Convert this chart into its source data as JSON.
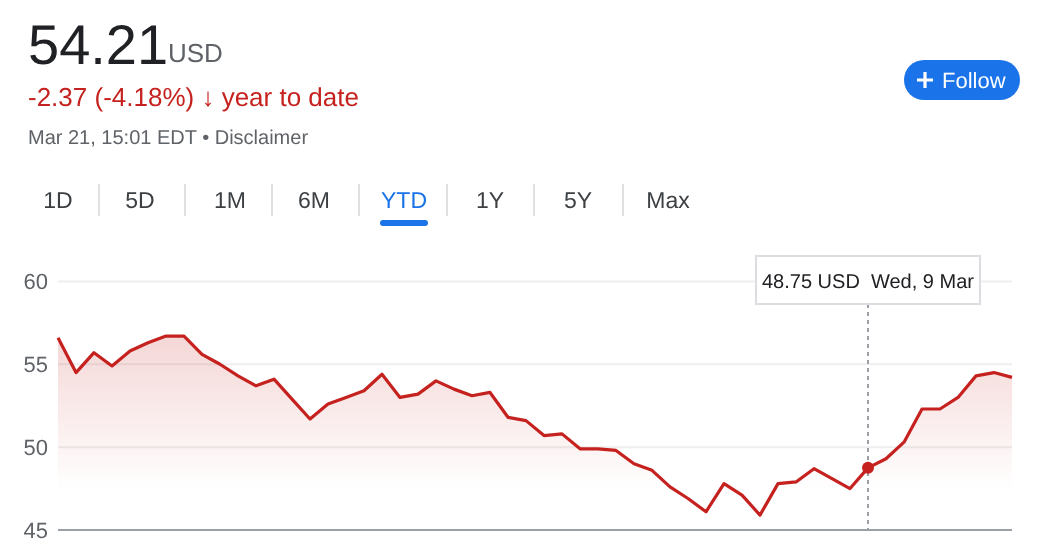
{
  "chart_data": {
    "type": "area",
    "title": "54.21",
    "subtitle": "-2.37 (-4.18%) ↓ year to date",
    "annotations": [
      "USD",
      "Mar 21, 15:01 EDT • Disclaimer",
      "Follow",
      "1D",
      "5D",
      "1M",
      "6M",
      "YTD",
      "1Y",
      "5Y",
      "Max",
      "48.75 USD  Wed, 9 Mar"
    ],
    "categories": [
      null,
      null,
      null,
      null,
      null,
      null,
      null,
      null,
      null,
      null,
      null,
      null,
      null,
      null,
      null,
      null,
      null,
      null,
      null,
      null,
      null,
      null,
      null,
      null,
      null,
      null,
      null,
      null,
      null,
      null,
      null,
      null,
      null,
      null,
      null,
      null,
      null,
      null,
      null,
      null,
      null,
      null,
      null,
      null,
      null,
      null,
      null,
      null,
      null,
      null,
      null,
      null,
      null,
      null
    ],
    "series": [
      {
        "color": "#c5221f",
        "values": [
          56.6,
          54.5,
          55.7,
          54.9,
          55.8,
          56.3,
          56.7,
          56.7,
          55.6,
          55.0,
          54.3,
          53.7,
          54.1,
          52.9,
          51.7,
          52.6,
          53.0,
          53.4,
          54.4,
          53.0,
          53.2,
          54.0,
          53.5,
          53.1,
          53.3,
          51.8,
          51.6,
          50.7,
          50.8,
          49.9,
          49.9,
          49.8,
          49.0,
          48.6,
          47.6,
          46.9,
          46.1,
          47.8,
          47.1,
          45.9,
          47.8,
          47.9,
          48.7,
          48.1,
          47.5,
          48.75,
          49.3,
          50.3,
          52.3,
          52.3,
          53.0,
          54.3,
          54.5,
          54.21
        ]
      }
    ],
    "ylim": [
      45,
      60
    ],
    "yticks": [
      45,
      50,
      55,
      60
    ],
    "grid": "y",
    "tick_labels": "y"
  }
}
